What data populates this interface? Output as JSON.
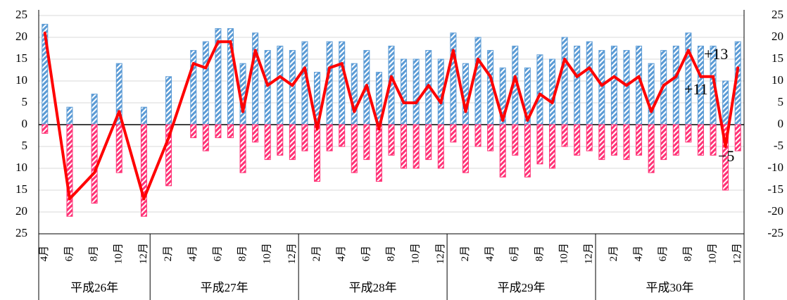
{
  "chart_data": {
    "type": "bar-line",
    "categories": [
      "4月",
      null,
      "6月",
      null,
      "8月",
      null,
      "10月",
      null,
      "12月",
      null,
      "2月",
      null,
      "4月",
      null,
      "6月",
      null,
      "8月",
      null,
      "10月",
      null,
      "12月",
      null,
      "2月",
      null,
      "4月",
      null,
      "6月",
      null,
      "8月",
      null,
      "10月",
      null,
      "12月",
      null,
      "2月",
      null,
      "4月",
      null,
      "6月",
      null,
      "8月",
      null,
      "10月",
      null,
      "12月",
      null,
      "2月",
      null,
      "4月",
      null,
      "6月",
      null,
      "8月",
      null,
      "10月",
      null,
      "12月"
    ],
    "groups": [
      {
        "label": "平成26年",
        "count": 9
      },
      {
        "label": "平成27年",
        "count": 12
      },
      {
        "label": "平成28年",
        "count": 12
      },
      {
        "label": "平成29年",
        "count": 12
      },
      {
        "label": "平成30年",
        "count": 12
      }
    ],
    "series": [
      {
        "type": "bar",
        "color": "#5b9bd5",
        "values": [
          23,
          null,
          4,
          null,
          7,
          null,
          14,
          null,
          4,
          null,
          11,
          null,
          17,
          19,
          22,
          22,
          14,
          21,
          17,
          18,
          17,
          19,
          12,
          19,
          19,
          14,
          17,
          12,
          18,
          15,
          15,
          17,
          15,
          21,
          14,
          20,
          17,
          13,
          18,
          13,
          16,
          15,
          20,
          18,
          19,
          17,
          18,
          17,
          18,
          14,
          17,
          18,
          21,
          18,
          18,
          10,
          19
        ]
      },
      {
        "type": "bar",
        "color": "#ff3377",
        "values": [
          -2,
          null,
          -21,
          null,
          -18,
          null,
          -11,
          null,
          -21,
          null,
          -14,
          null,
          -3,
          -6,
          -3,
          -3,
          -11,
          -4,
          -8,
          -7,
          -8,
          -6,
          -13,
          -6,
          -5,
          -11,
          -8,
          -13,
          -7,
          -10,
          -10,
          -8,
          -10,
          -4,
          -11,
          -5,
          -6,
          -12,
          -7,
          -12,
          -9,
          -10,
          -5,
          -7,
          -6,
          -8,
          -7,
          -8,
          -7,
          -11,
          -8,
          -7,
          -4,
          -7,
          -7,
          -15,
          -6
        ]
      },
      {
        "type": "line",
        "axis": "y2",
        "color": "#ff0000",
        "values": [
          21,
          null,
          -17,
          null,
          -11,
          null,
          3,
          null,
          -17,
          null,
          -3,
          null,
          14,
          13,
          19,
          19,
          3,
          17,
          9,
          11,
          9,
          13,
          -1,
          13,
          14,
          3,
          9,
          -1,
          11,
          5,
          5,
          9,
          5,
          17,
          3,
          15,
          11,
          1,
          11,
          1,
          7,
          5,
          15,
          11,
          13,
          9,
          11,
          9,
          11,
          3,
          9,
          11,
          17,
          11,
          11,
          -5,
          13
        ]
      }
    ],
    "ylim": [
      -25,
      25
    ],
    "yticks": [
      {
        "value": -25,
        "label": "25"
      },
      {
        "value": -20,
        "label": "20"
      },
      {
        "value": -15,
        "label": "15"
      },
      {
        "value": -10,
        "label": "10"
      },
      {
        "value": -5,
        "label": "5"
      },
      0,
      5,
      10,
      15,
      20,
      25
    ],
    "y2lim": [
      -25,
      25
    ],
    "y2ticks": [
      -25,
      -20,
      -15,
      -10,
      -5,
      0,
      5,
      10,
      15,
      20,
      25
    ],
    "grid": true,
    "annotations": [
      "+13",
      "+11",
      "−5"
    ]
  }
}
